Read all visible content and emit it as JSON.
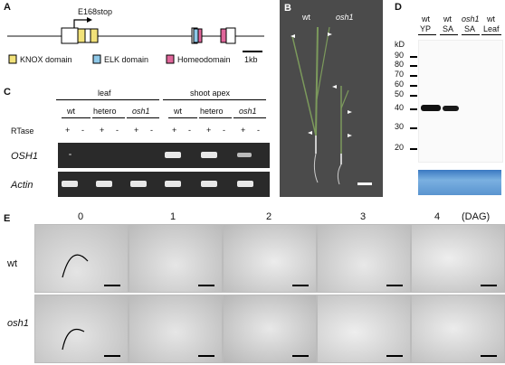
{
  "panels": {
    "A": "A",
    "B": "B",
    "C": "C",
    "D": "D",
    "E": "E"
  },
  "panelA": {
    "mutation_label": "E168stop",
    "legend": [
      {
        "label": "KNOX domain",
        "color": "#f2e27a"
      },
      {
        "label": "ELK domain",
        "color": "#8ec8e8"
      },
      {
        "label": "Homeodomain",
        "color": "#e0669a"
      }
    ],
    "scale_label": "1kb"
  },
  "panelB": {
    "labels": [
      "wt",
      "osh1"
    ]
  },
  "panelC": {
    "groups": [
      "leaf",
      "shoot apex"
    ],
    "lanes": [
      "wt",
      "hetero",
      "osh1",
      "wt",
      "hetero",
      "osh1"
    ],
    "rtase_label": "RTase",
    "rtase_marks": [
      "+",
      "-",
      "+",
      "-",
      "+",
      "-",
      "+",
      "-",
      "+",
      "-",
      "+",
      "-"
    ],
    "rows": [
      "OSH1",
      "Actin"
    ]
  },
  "panelD": {
    "lanes": [
      {
        "top": "wt",
        "bottom": "YP"
      },
      {
        "top": "wt",
        "bottom": "SA"
      },
      {
        "top": "osh1",
        "bottom": "SA"
      },
      {
        "top": "wt",
        "bottom": "Leaf"
      }
    ],
    "unit": "kD",
    "markers": [
      "90",
      "80",
      "70",
      "60",
      "50",
      "40",
      "30",
      "20"
    ]
  },
  "panelE": {
    "days": [
      "0",
      "1",
      "2",
      "3",
      "4"
    ],
    "unit": "(DAG)",
    "rows": [
      "wt",
      "osh1"
    ]
  }
}
